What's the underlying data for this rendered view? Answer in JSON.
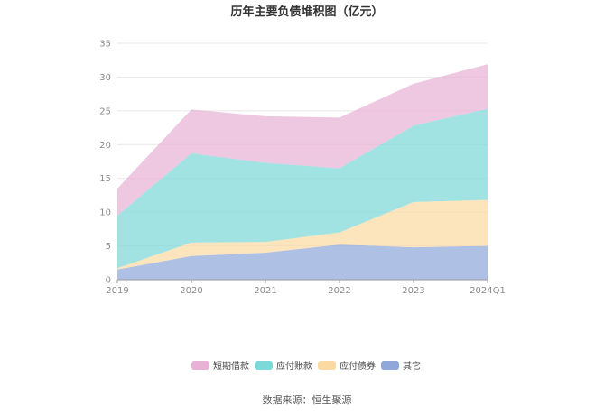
{
  "chart_data": {
    "type": "area",
    "stacked": true,
    "title": "历年主要负债堆积图（亿元）",
    "categories": [
      "2019",
      "2020",
      "2021",
      "2022",
      "2023",
      "2024Q1"
    ],
    "ylim": [
      0,
      35
    ],
    "yticks": [
      0,
      5,
      10,
      15,
      20,
      25,
      30,
      35
    ],
    "grid": true,
    "legend_position": "bottom",
    "series": [
      {
        "name": "其它",
        "color": "#8fa8d9",
        "values": [
          1.5,
          3.5,
          4.0,
          5.2,
          4.8,
          5.0
        ]
      },
      {
        "name": "应付债券",
        "color": "#fbd9a3",
        "values": [
          0.2,
          2.0,
          1.6,
          1.8,
          6.7,
          6.8
        ]
      },
      {
        "name": "应付账款",
        "color": "#7dd8d8",
        "values": [
          7.8,
          13.2,
          11.7,
          9.5,
          11.3,
          13.5
        ]
      },
      {
        "name": "短期借款",
        "color": "#e8b1d6",
        "values": [
          4.0,
          6.5,
          6.9,
          7.5,
          6.2,
          6.6
        ]
      }
    ],
    "legend_order": [
      "短期借款",
      "应付账款",
      "应付债券",
      "其它"
    ],
    "source": "数据来源：恒生聚源"
  }
}
